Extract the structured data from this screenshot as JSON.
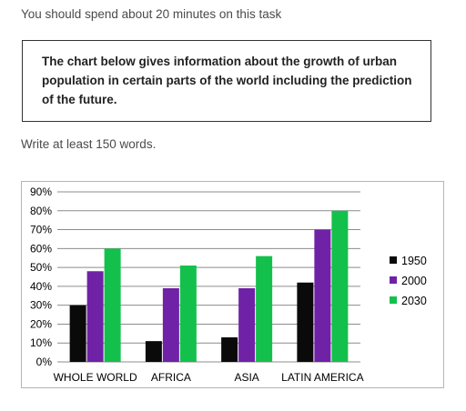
{
  "instructions": {
    "time_note": "You should spend about 20 minutes on this task",
    "prompt": "The chart below gives information about the growth of urban population in certain parts of the world including the prediction of the future.",
    "word_requirement": "Write at least 150 words."
  },
  "colors": {
    "s1950": "#0a0a0a",
    "s2000": "#7022a6",
    "s2030": "#14c04c",
    "grid": "#8c8c8c"
  },
  "chart_data": {
    "type": "bar",
    "title": "",
    "xlabel": "",
    "ylabel": "",
    "categories": [
      "WHOLE WORLD",
      "AFRICA",
      "ASIA",
      "LATIN AMERICA"
    ],
    "series": [
      {
        "name": "1950",
        "values": [
          30,
          11,
          13,
          42
        ]
      },
      {
        "name": "2000",
        "values": [
          48,
          39,
          39,
          70
        ]
      },
      {
        "name": "2030",
        "values": [
          60,
          51,
          56,
          80
        ]
      }
    ],
    "ylim": [
      0,
      90
    ],
    "yticks": [
      "0%",
      "10%",
      "20%",
      "30%",
      "40%",
      "50%",
      "60%",
      "70%",
      "80%",
      "90%"
    ],
    "grid": true,
    "legend": "right"
  }
}
